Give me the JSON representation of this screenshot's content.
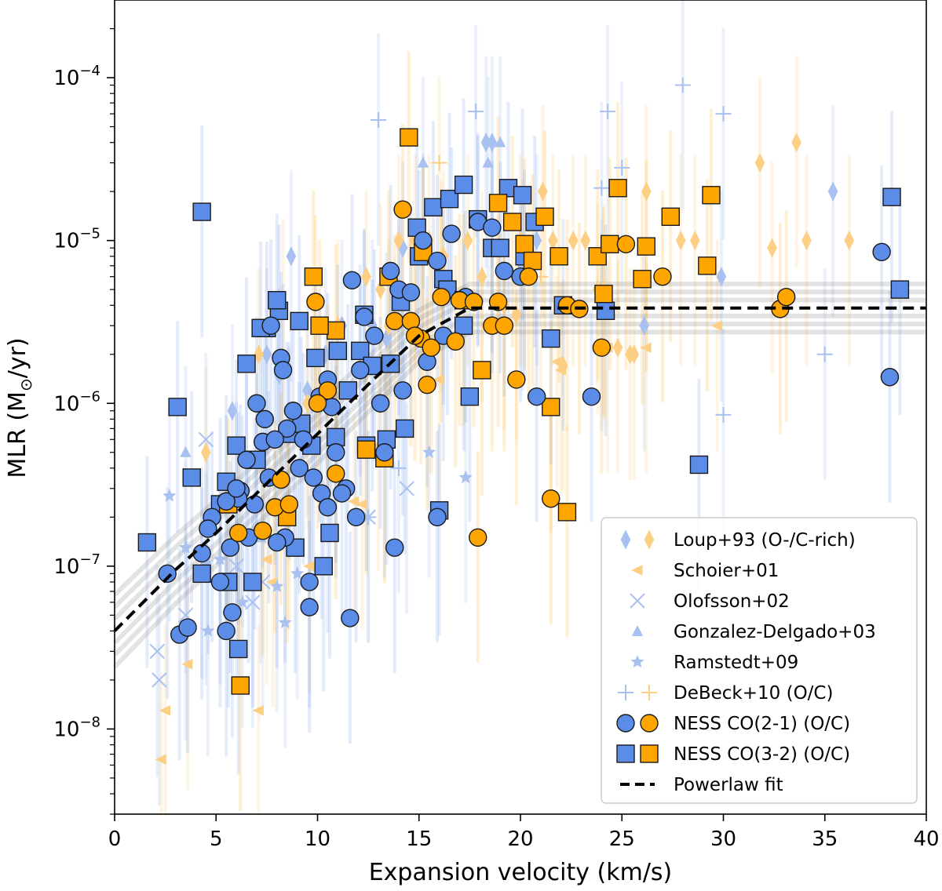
{
  "chart_data": {
    "type": "scatter",
    "xlabel": "Expansion velocity (km/s)",
    "ylabel_main": "MLR (M",
    "ylabel_sub": "⊙",
    "ylabel_tail": "/yr)",
    "xlim": [
      0,
      40
    ],
    "ylim": [
      3e-09,
      0.0003
    ],
    "yscale": "log",
    "x_ticks": [
      0,
      5,
      10,
      15,
      20,
      25,
      30,
      35,
      40
    ],
    "x_tick_labels": [
      "0",
      "5",
      "10",
      "15",
      "20",
      "25",
      "30",
      "35",
      "40"
    ],
    "y_ticks": [
      {
        "value": 1e-08,
        "base": "10",
        "exp": "−8"
      },
      {
        "value": 1e-07,
        "base": "10",
        "exp": "−7"
      },
      {
        "value": 1e-06,
        "base": "10",
        "exp": "−6"
      },
      {
        "value": 1e-05,
        "base": "10",
        "exp": "−5"
      },
      {
        "value": 0.0001,
        "base": "10",
        "exp": "−4"
      }
    ],
    "grid": false,
    "legend_position": "bottom-right",
    "colors": {
      "o_rich": "#5b8de8",
      "c_rich": "#ffa500",
      "o_rich_light": "#a9c1f0",
      "c_rich_light": "#fdcf85",
      "fit": "#000000",
      "fit_band": "#808080"
    },
    "legend": [
      {
        "label": "Loup+93 (O-/C-rich)",
        "marker": "diamond",
        "colors": [
          "o_rich_light",
          "c_rich_light"
        ]
      },
      {
        "label": "Schoier+01",
        "marker": "triangle-left",
        "colors": [
          "c_rich_light"
        ]
      },
      {
        "label": "Olofsson+02",
        "marker": "x",
        "colors": [
          "o_rich_light"
        ]
      },
      {
        "label": "Gonzalez-Delgado+03",
        "marker": "triangle-up",
        "colors": [
          "o_rich_light"
        ]
      },
      {
        "label": "Ramstedt+09",
        "marker": "star",
        "colors": [
          "o_rich_light"
        ]
      },
      {
        "label": "DeBeck+10 (O/C)",
        "marker": "plus",
        "colors": [
          "o_rich_light",
          "c_rich_light"
        ]
      },
      {
        "label": "NESS CO(2-1) (O/C)",
        "marker": "circle",
        "colors": [
          "o_rich",
          "c_rich"
        ]
      },
      {
        "label": "NESS CO(3-2) (O/C)",
        "marker": "square",
        "colors": [
          "o_rich",
          "c_rich"
        ]
      },
      {
        "label": "Powerlaw fit",
        "marker": "dashed-line",
        "colors": [
          "fit"
        ]
      }
    ],
    "powerlaw_fit": {
      "x": [
        0,
        3,
        5,
        7,
        9,
        11,
        13,
        15,
        17.5,
        20,
        25,
        30,
        35,
        40
      ],
      "y": [
        4e-08,
        9.5e-08,
        1.6e-07,
        2.8e-07,
        4.9e-07,
        8.6e-07,
        1.5e-06,
        2.6e-06,
        3.85e-06,
        3.85e-06,
        3.85e-06,
        3.85e-06,
        3.85e-06,
        3.85e-06
      ]
    },
    "series": [
      {
        "name": "Loup+93 (O-rich)",
        "marker": "diamond",
        "color": "o_rich_light",
        "x": [
          5.8,
          7.5,
          8.1,
          8.7,
          10.4,
          12.7,
          13.4,
          14.2,
          18.3,
          18.6,
          20.1,
          20.8,
          24.0,
          26.1,
          29.9,
          35.4,
          8.6,
          9.5,
          11.2
        ],
        "y": [
          9e-07,
          2e-06,
          1.5e-06,
          8e-06,
          2e-06,
          3e-06,
          2.5e-06,
          9e-06,
          4e-05,
          4e-05,
          7e-06,
          1e-05,
          4e-06,
          3e-06,
          6e-06,
          2e-05,
          7e-07,
          1.2e-06,
          3e-06
        ]
      },
      {
        "name": "Loup+93 (C-rich)",
        "marker": "diamond",
        "color": "c_rich_light",
        "x": [
          4.5,
          7.1,
          8.3,
          9.5,
          11.0,
          12.4,
          13.5,
          14.0,
          14.8,
          15.5,
          16.2,
          17.4,
          18.1,
          19.2,
          20.0,
          21.1,
          21.6,
          22.6,
          23.2,
          24.1,
          25.4,
          26.2,
          27.9,
          28.6,
          31.8,
          32.4,
          33.6,
          34.1,
          36.2,
          23.8,
          24.8,
          25.6,
          22.1,
          19.8,
          13.1,
          16.1
        ],
        "y": [
          5e-07,
          2e-06,
          4e-06,
          1e-06,
          3e-06,
          6e-06,
          3e-06,
          1e-05,
          1e-05,
          1e-05,
          8e-06,
          1e-05,
          6e-06,
          4e-06,
          1e-05,
          2e-05,
          1e-05,
          1e-05,
          1e-05,
          5e-06,
          2e-06,
          2e-05,
          1e-05,
          1e-05,
          3e-05,
          9e-06,
          4e-05,
          1e-05,
          1e-05,
          5e-06,
          2.2e-06,
          2e-06,
          1.7e-06,
          3.5e-06,
          5e-06,
          7e-06
        ]
      },
      {
        "name": "Schoier+01",
        "marker": "triangle-left",
        "color": "c_rich_light",
        "x": [
          2.3,
          3.6,
          7.1,
          7.8,
          7.5,
          12.2,
          13.0,
          16.0,
          21.8,
          24.3,
          26.2,
          29.7,
          2.5,
          9.6,
          11.8,
          22.0
        ],
        "y": [
          6.5e-09,
          2.5e-08,
          1.3e-08,
          8e-08,
          1.1e-07,
          2.4e-07,
          5.5e-07,
          1.4e-06,
          1.8e-06,
          2.2e-06,
          2.2e-06,
          3e-06,
          1.3e-08,
          1e-07,
          2.5e-07,
          1.6e-06
        ]
      },
      {
        "name": "Olofsson+02",
        "marker": "x",
        "color": "o_rich_light",
        "x": [
          2.1,
          2.2,
          3.5,
          4.5,
          6.0,
          6.8,
          7.3,
          14.4,
          12.5
        ],
        "y": [
          3e-08,
          2e-08,
          5e-08,
          6e-07,
          1e-07,
          6e-08,
          8e-08,
          3e-07,
          2e-07
        ]
      },
      {
        "name": "Gonzalez-Delgado+03",
        "marker": "triangle-up",
        "color": "o_rich_light",
        "x": [
          3.5,
          4.5,
          6.3,
          7.2,
          15.2,
          18.4,
          19.0
        ],
        "y": [
          5e-07,
          1.1e-07,
          2.5e-07,
          1.5e-07,
          3e-05,
          3e-05,
          4e-05
        ]
      },
      {
        "name": "Ramstedt+09",
        "marker": "star",
        "color": "o_rich_light",
        "x": [
          2.7,
          3.5,
          4.6,
          6.3,
          5.2,
          8.4,
          9.0,
          17.3,
          15.5,
          8.0
        ],
        "y": [
          2.7e-07,
          1.3e-07,
          4e-08,
          6e-08,
          1.1e-07,
          4.5e-08,
          9e-08,
          3.5e-07,
          5e-07,
          7.5e-08
        ]
      },
      {
        "name": "DeBeck+10 (O-rich)",
        "marker": "plus",
        "color": "o_rich_light",
        "x": [
          13.0,
          17.8,
          24.3,
          28.0,
          30.0,
          25.0,
          24.0,
          35.0,
          30.0,
          14.0,
          12.5
        ],
        "y": [
          5.5e-05,
          6.2e-05,
          6.2e-05,
          9e-05,
          6e-05,
          2.8e-05,
          2.1e-05,
          2e-06,
          8.5e-07,
          4e-07,
          2e-07
        ]
      },
      {
        "name": "DeBeck+10 (C-rich)",
        "marker": "plus",
        "color": "c_rich_light",
        "x": [
          16.0,
          21.0
        ],
        "y": [
          3e-05,
          6e-06
        ]
      },
      {
        "name": "NESS CO(2-1) O-rich",
        "marker": "circle",
        "color": "o_rich",
        "x": [
          2.6,
          3.2,
          3.6,
          4.3,
          4.8,
          5.5,
          5.8,
          6.2,
          6.6,
          6.9,
          7.3,
          7.7,
          8.2,
          8.5,
          9.1,
          9.6,
          10.1,
          10.5,
          10.9,
          11.4,
          11.7,
          12.3,
          12.8,
          13.6,
          14.0,
          14.6,
          15.2,
          15.9,
          16.6,
          17.3,
          17.9,
          18.6,
          19.2,
          20.0,
          20.8,
          23.5,
          37.8,
          38.2,
          4.6,
          5.2,
          5.7,
          6.1,
          6.5,
          7.0,
          7.4,
          7.9,
          8.3,
          8.8,
          9.3,
          9.8,
          10.2,
          10.7,
          11.2,
          12.1,
          13.1,
          14.2,
          15.4,
          16.2,
          5.5,
          6.0,
          7.6,
          8.4,
          9.6,
          11.6,
          13.8,
          15.9,
          8.0,
          10.5,
          11.9,
          13.3
        ],
        "y": [
          9e-08,
          3.8e-08,
          4.2e-08,
          1.2e-07,
          2e-07,
          4e-08,
          5.2e-08,
          2.9e-07,
          1.5e-07,
          2.4e-07,
          5.8e-07,
          3e-06,
          1.9e-06,
          7e-07,
          4e-07,
          5.6e-08,
          1.1e-06,
          1.4e-06,
          5e-07,
          3e-07,
          5.7e-06,
          3.4e-06,
          2.6e-06,
          6.5e-06,
          5e-06,
          4.8e-06,
          1e-05,
          7.5e-06,
          1.1e-05,
          4.5e-06,
          1.3e-05,
          1.2e-05,
          6.5e-06,
          6e-06,
          1.1e-06,
          1.1e-06,
          8.5e-06,
          1.45e-06,
          1.7e-07,
          8e-08,
          1.3e-07,
          2.6e-07,
          4.5e-07,
          1e-06,
          8e-07,
          6e-07,
          1.6e-06,
          9e-07,
          6e-07,
          3.5e-07,
          2.8e-07,
          9.5e-07,
          2.8e-07,
          1.6e-06,
          1e-06,
          1.2e-06,
          1.8e-06,
          2.6e-06,
          2.5e-07,
          3e-07,
          3.5e-07,
          1.5e-07,
          8e-08,
          4.8e-08,
          1.3e-07,
          2e-07,
          1.4e-07,
          2.3e-07,
          2e-07,
          5e-07
        ]
      },
      {
        "name": "NESS CO(2-1) C-rich",
        "marker": "circle",
        "color": "c_rich",
        "x": [
          6.1,
          7.3,
          7.9,
          8.2,
          8.6,
          9.9,
          10.5,
          10.9,
          13.8,
          14.2,
          14.6,
          15.1,
          15.6,
          16.1,
          17.0,
          17.9,
          18.6,
          19.2,
          19.8,
          20.4,
          21.5,
          22.3,
          22.9,
          24.0,
          25.2,
          27.0,
          32.8,
          33.1,
          14.8,
          15.4,
          16.8,
          17.7,
          18.9,
          10.0
        ],
        "y": [
          1.6e-07,
          1.65e-07,
          2.3e-07,
          3.4e-07,
          2.4e-07,
          4.2e-06,
          1.2e-06,
          3.7e-07,
          3.2e-06,
          1.55e-05,
          3.2e-06,
          2.5e-06,
          2.2e-06,
          4.5e-06,
          4.3e-06,
          1.5e-07,
          3e-06,
          3e-06,
          1.4e-06,
          6e-06,
          2.6e-07,
          4e-06,
          3.8e-06,
          2.2e-06,
          9.5e-06,
          6e-06,
          3.8e-06,
          4.5e-06,
          2.6e-06,
          1.3e-06,
          2.4e-06,
          4.2e-06,
          4.2e-06,
          1e-06
        ]
      },
      {
        "name": "NESS CO(3-2) O-rich",
        "marker": "square",
        "color": "o_rich",
        "x": [
          1.6,
          3.1,
          3.8,
          4.3,
          5.2,
          5.6,
          6.1,
          6.5,
          7.0,
          7.5,
          8.1,
          8.6,
          9.2,
          9.7,
          10.3,
          10.9,
          11.5,
          12.1,
          12.7,
          13.4,
          14.1,
          14.9,
          15.7,
          16.5,
          17.2,
          17.9,
          18.6,
          19.4,
          20.1,
          20.7,
          21.5,
          22.1,
          4.3,
          24.2,
          28.8,
          38.3,
          38.7,
          16.0,
          12.3,
          8.0,
          7.2,
          9.1,
          9.9,
          11.0,
          13.6,
          15.0,
          16.2,
          17.5,
          19.0,
          20.2,
          5.5,
          6.0,
          6.8,
          8.9,
          10.6,
          12.4,
          14.3,
          16.4,
          17.2
        ],
        "y": [
          1.4e-07,
          9.5e-07,
          3.5e-07,
          9e-08,
          2.4e-07,
          8e-08,
          3.1e-08,
          1.75e-06,
          4.5e-07,
          2.9e-06,
          3.7e-06,
          6.5e-07,
          7.5e-07,
          5.5e-07,
          1e-07,
          6.2e-07,
          1.2e-06,
          2.1e-06,
          1.7e-06,
          6e-07,
          4.2e-06,
          1.2e-05,
          1.6e-05,
          1.8e-05,
          2.2e-05,
          1.35e-05,
          9e-06,
          2.1e-05,
          1.9e-05,
          1.3e-05,
          2.5e-06,
          4e-06,
          1.5e-05,
          3.7e-06,
          4.2e-07,
          1.85e-05,
          5e-06,
          2.2e-07,
          3.5e-06,
          4.3e-06,
          2.9e-06,
          3.2e-06,
          1.9e-06,
          2.1e-06,
          1.75e-06,
          8e-06,
          5.8e-06,
          1.1e-06,
          9e-06,
          8e-06,
          3.3e-07,
          5.5e-07,
          8e-08,
          1.3e-07,
          1.6e-07,
          5.5e-07,
          7e-07,
          5e-06,
          3e-06
        ]
      },
      {
        "name": "NESS CO(3-2) C-rich",
        "marker": "square",
        "color": "c_rich",
        "x": [
          6.2,
          5.6,
          8.5,
          9.8,
          10.9,
          12.4,
          13.3,
          14.5,
          15.2,
          17.2,
          18.1,
          18.9,
          19.6,
          20.2,
          21.2,
          21.5,
          21.9,
          22.3,
          23.8,
          24.1,
          24.4,
          24.8,
          26.0,
          26.2,
          27.4,
          29.2,
          29.4,
          20.6,
          13.5,
          10.1
        ],
        "y": [
          1.85e-08,
          2.4e-07,
          2e-07,
          6e-06,
          2.8e-06,
          5.2e-07,
          4.6e-07,
          4.3e-05,
          8.5e-06,
          4.3e-06,
          1.6e-06,
          1.7e-05,
          1.3e-05,
          9.5e-06,
          1.4e-05,
          9.5e-07,
          8e-06,
          2.15e-07,
          8e-06,
          4.7e-06,
          9.5e-06,
          2.1e-05,
          5.8e-06,
          9.2e-06,
          1.4e-05,
          7e-06,
          1.9e-05,
          7.5e-06,
          6e-06,
          3e-06
        ]
      }
    ]
  }
}
